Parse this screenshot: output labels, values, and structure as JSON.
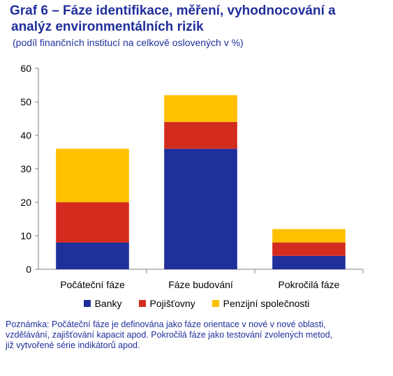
{
  "title_line1": "Graf 6 – Fáze identifikace, měření, vyhodnocování a",
  "title_line2": "analýz environmentálních rizik",
  "subtitle": "(podíl finančních institucí na celkově oslovených v %)",
  "note_lines": [
    "Poznámka: Počáteční fáze je definována jako fáze orientace v nové v nové oblasti,",
    "vzdělávání, zajišťování kapacit apod. Pokročilá fáze jako testování zvolených metod,",
    "již vytvořené série indikátorů apod."
  ],
  "chart_data": {
    "type": "bar",
    "stacked": true,
    "categories": [
      "Počáteční fáze",
      "Fáze budování",
      "Pokročilá fáze"
    ],
    "series": [
      {
        "name": "Banky",
        "color": "#1f2f9b",
        "values": [
          8,
          36,
          4
        ]
      },
      {
        "name": "Pojišťovny",
        "color": "#d42b1f",
        "values": [
          12,
          8,
          4
        ]
      },
      {
        "name": "Penzijní společnosti",
        "color": "#ffc000",
        "values": [
          16,
          8,
          4
        ]
      }
    ],
    "ylim": [
      0,
      60
    ],
    "yticks": [
      "0",
      "10",
      "20",
      "30",
      "40",
      "50",
      "60"
    ],
    "grid": false,
    "legend_position": "bottom"
  }
}
